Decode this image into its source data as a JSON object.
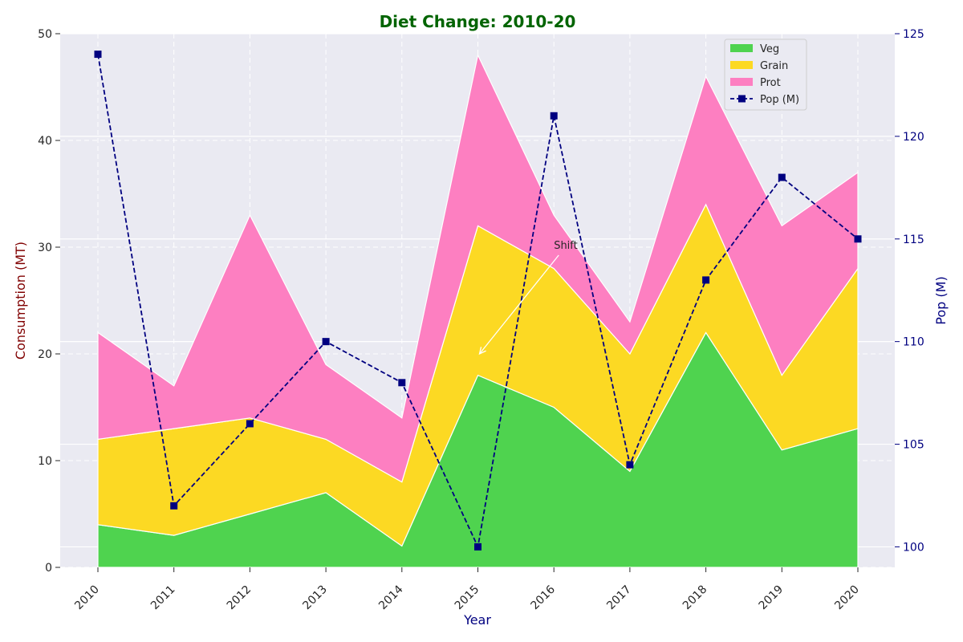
{
  "chart_data": {
    "type": "area",
    "title": "Diet Change: 2010-20",
    "title_color": "#006400",
    "xlabel": "Year",
    "xlabel_color": "#000080",
    "ylabel": "Consumption (MT)",
    "ylabel_color": "#800000",
    "y2label": "Pop (M)",
    "y2label_color": "#000080",
    "categories": [
      "2010",
      "2011",
      "2012",
      "2013",
      "2014",
      "2015",
      "2016",
      "2017",
      "2018",
      "2019",
      "2020"
    ],
    "ylim": [
      0,
      50
    ],
    "y2lim": [
      99,
      125
    ],
    "yticks": [
      0,
      10,
      20,
      30,
      40,
      50
    ],
    "y2ticks": [
      100,
      105,
      110,
      115,
      120,
      125
    ],
    "stacked": true,
    "series": [
      {
        "name": "Veg",
        "color": "#4fd34f",
        "values": [
          4,
          3,
          5,
          7,
          2,
          18,
          15,
          9,
          22,
          11,
          13
        ]
      },
      {
        "name": "Grain",
        "color": "#fcd923",
        "values": [
          8,
          10,
          9,
          5,
          6,
          14,
          13,
          11,
          12,
          7,
          15
        ]
      },
      {
        "name": "Prot",
        "color": "#fd7fc1",
        "values": [
          10,
          4,
          19,
          7,
          6,
          16,
          5,
          3,
          12,
          14,
          9
        ]
      }
    ],
    "line_series": {
      "name": "Pop (M)",
      "color": "#000080",
      "axis": "right",
      "style": "dashed",
      "marker": "square",
      "values": [
        124,
        102,
        106,
        110,
        108,
        100,
        121,
        104,
        113,
        118,
        115
      ]
    },
    "annotation": {
      "text": "Shift",
      "x": "2016",
      "y": 30,
      "arrow_to_x": "2015",
      "arrow_to_y": 20
    },
    "grid": true,
    "legend_position": "top-right",
    "background": "#eaeaf2"
  }
}
